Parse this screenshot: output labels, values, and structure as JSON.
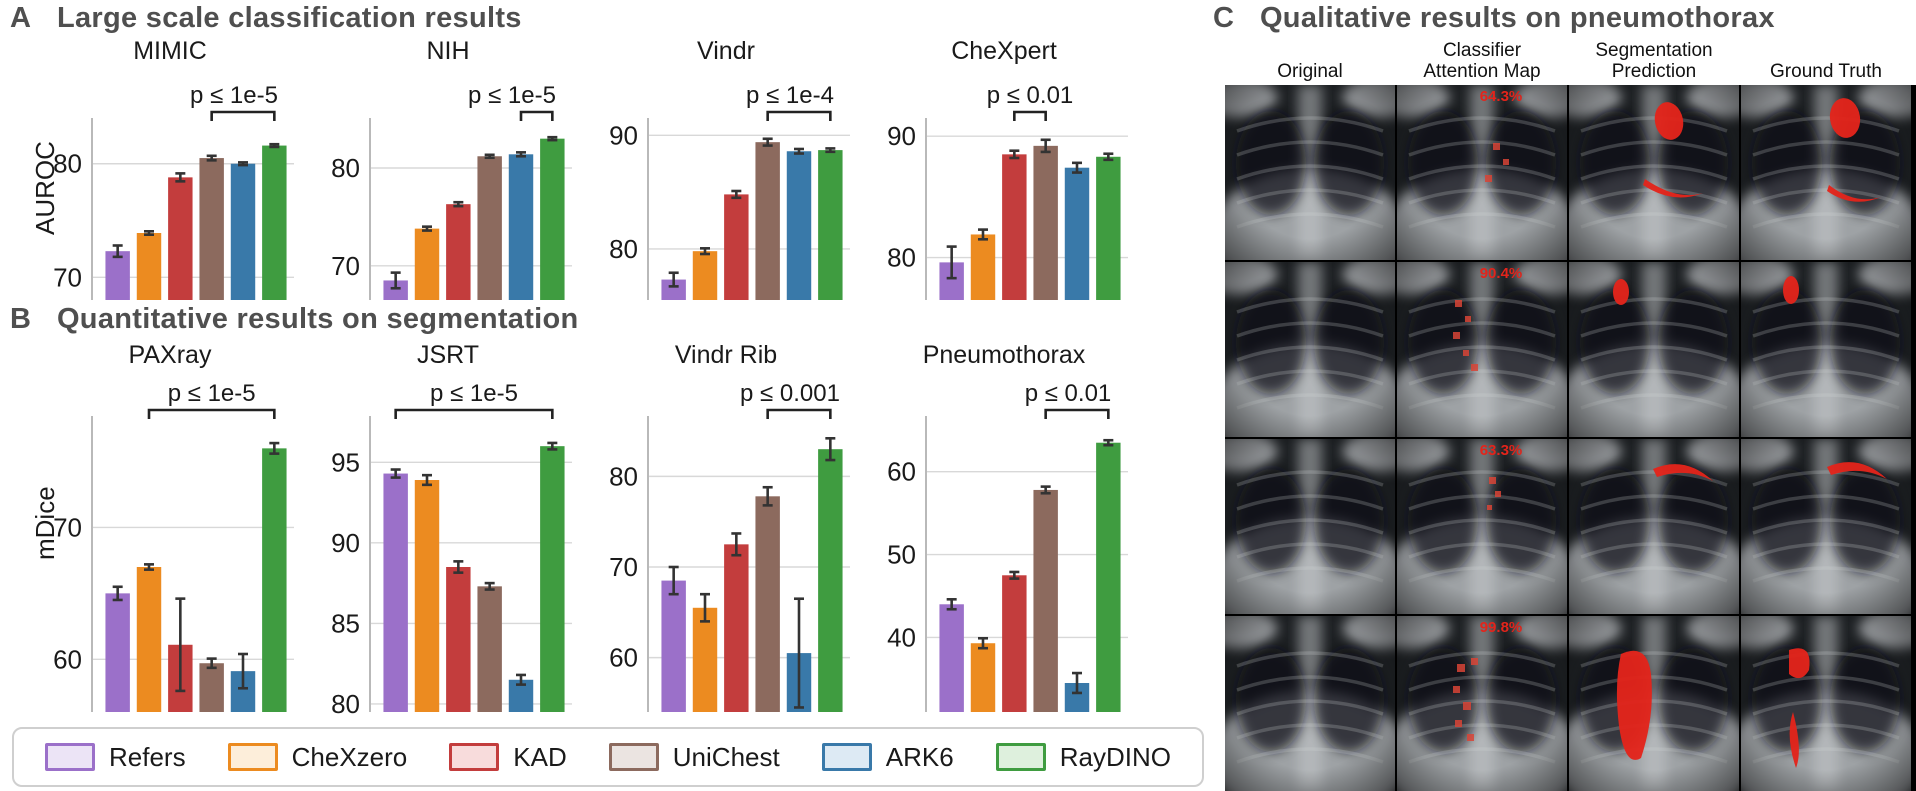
{
  "figure": {
    "panel_a": {
      "letter": "A",
      "title": "Large scale classification results",
      "ylabel": "AUROC"
    },
    "panel_b": {
      "letter": "B",
      "title": "Quantitative results on segmentation",
      "ylabel": "mDice"
    },
    "panel_c": {
      "letter": "C",
      "title": "Qualitative results on pneumothorax",
      "column_headers": [
        "Original",
        "Classifier\nAttention Map",
        "Segmentation\nPrediction",
        "Ground Truth"
      ],
      "rows": [
        {
          "attention_pct": "64.3%"
        },
        {
          "attention_pct": "90.4%"
        },
        {
          "attention_pct": "63.3%"
        },
        {
          "attention_pct": "99.8%"
        }
      ],
      "overlay_color": "#e3241b"
    }
  },
  "legend": {
    "entries": [
      {
        "label": "Refers",
        "color": "#9b70c9",
        "fill": "#ece4f6"
      },
      {
        "label": "CheXzero",
        "color": "#ec8b20",
        "fill": "#fdeeda"
      },
      {
        "label": "KAD",
        "color": "#c33d3d",
        "fill": "#f8dcdc"
      },
      {
        "label": "UniChest",
        "color": "#8c6a5e",
        "fill": "#ebe4e1"
      },
      {
        "label": "ARK6",
        "color": "#3979a9",
        "fill": "#ddeaf4"
      },
      {
        "label": "RayDINO",
        "color": "#3f9c40",
        "fill": "#def0dd"
      }
    ]
  },
  "chart_data": {
    "type": "bar",
    "models": [
      "Refers",
      "CheXzero",
      "KAD",
      "UniChest",
      "ARK6",
      "RayDINO"
    ],
    "panels": [
      {
        "panel": "A",
        "metric": "AUROC",
        "title": "MIMIC",
        "values": [
          72.3,
          73.9,
          78.8,
          80.5,
          80.0,
          81.6
        ],
        "errors": [
          0.5,
          0.15,
          0.35,
          0.2,
          0.12,
          0.12
        ],
        "yticks": [
          70,
          80
        ],
        "ylim": [
          68,
          83.5
        ],
        "p_label": "p ≤ 1e-5",
        "bracket_between": [
          "UniChest",
          "RayDINO"
        ]
      },
      {
        "panel": "A",
        "metric": "AUROC",
        "title": "NIH",
        "values": [
          68.5,
          73.8,
          76.3,
          81.2,
          81.4,
          83.0
        ],
        "errors": [
          0.8,
          0.2,
          0.2,
          0.15,
          0.2,
          0.15
        ],
        "yticks": [
          70,
          80
        ],
        "ylim": [
          66.5,
          84.5
        ],
        "p_label": "p ≤ 1e-5",
        "bracket_between": [
          "ARK6",
          "RayDINO"
        ]
      },
      {
        "panel": "A",
        "metric": "AUROC",
        "title": "Vindr",
        "values": [
          77.3,
          79.8,
          84.8,
          89.4,
          88.6,
          88.7
        ],
        "errors": [
          0.6,
          0.25,
          0.3,
          0.3,
          0.2,
          0.15
        ],
        "yticks": [
          80,
          90
        ],
        "ylim": [
          75.5,
          91
        ],
        "p_label": "p ≤ 1e-4",
        "bracket_between": [
          "UniChest",
          "RayDINO"
        ]
      },
      {
        "panel": "A",
        "metric": "AUROC",
        "title": "CheXpert",
        "values": [
          79.6,
          81.9,
          88.5,
          89.2,
          87.4,
          88.3
        ],
        "errors": [
          1.3,
          0.4,
          0.3,
          0.5,
          0.4,
          0.25
        ],
        "yticks": [
          80,
          90
        ],
        "ylim": [
          76.5,
          91
        ],
        "p_label": "p ≤ 0.01",
        "bracket_between": [
          "KAD",
          "UniChest"
        ]
      },
      {
        "panel": "B",
        "metric": "mDice",
        "title": "PAXray",
        "values": [
          65.0,
          67.0,
          61.1,
          59.7,
          59.1,
          76.0
        ],
        "errors": [
          0.5,
          0.2,
          3.5,
          0.35,
          1.3,
          0.4
        ],
        "yticks": [
          60,
          70
        ],
        "ylim": [
          56,
          78
        ],
        "p_label": "p ≤ 1e-5",
        "bracket_between": [
          "CheXzero",
          "RayDINO"
        ]
      },
      {
        "panel": "B",
        "metric": "mDice",
        "title": "JSRT",
        "values": [
          94.3,
          93.9,
          88.5,
          87.3,
          81.5,
          96.0
        ],
        "errors": [
          0.25,
          0.3,
          0.35,
          0.2,
          0.3,
          0.2
        ],
        "yticks": [
          80,
          85,
          90,
          95
        ],
        "ylim": [
          79.5,
          97.5
        ],
        "p_label": "p ≤ 1e-5",
        "bracket_between": [
          "Refers",
          "RayDINO"
        ]
      },
      {
        "panel": "B",
        "metric": "mDice",
        "title": "Vindr Rib",
        "values": [
          68.5,
          65.5,
          72.5,
          77.8,
          60.5,
          83.0
        ],
        "errors": [
          1.5,
          1.5,
          1.2,
          1.0,
          6.0,
          1.2
        ],
        "yticks": [
          60,
          70,
          80
        ],
        "ylim": [
          54,
          86
        ],
        "p_label": "p ≤ 0.001",
        "bracket_between": [
          "UniChest",
          "RayDINO"
        ]
      },
      {
        "panel": "B",
        "metric": "mDice",
        "title": "Pneumothorax",
        "values": [
          44.0,
          39.3,
          47.5,
          57.8,
          34.5,
          63.5
        ],
        "errors": [
          0.6,
          0.6,
          0.4,
          0.4,
          1.2,
          0.3
        ],
        "yticks": [
          40,
          50,
          60
        ],
        "ylim": [
          31,
          66
        ],
        "p_label": "p ≤ 0.01",
        "bracket_between": [
          "UniChest",
          "RayDINO"
        ]
      }
    ]
  }
}
